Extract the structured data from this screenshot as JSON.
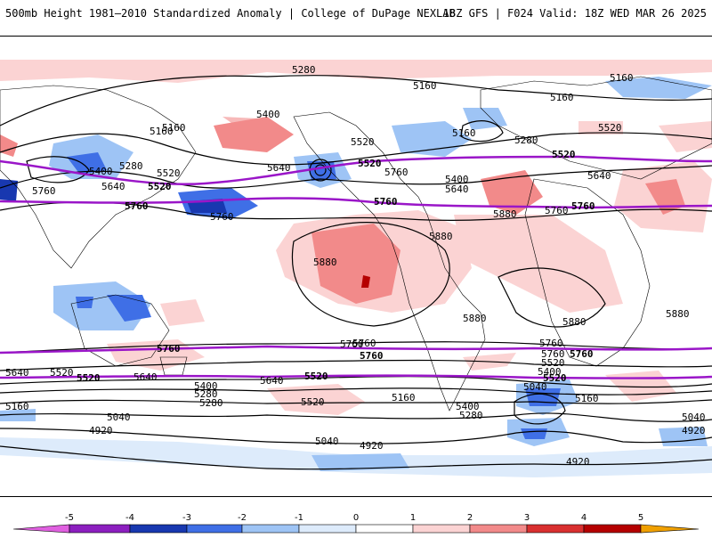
{
  "header": {
    "title_left": "500mb Height 1981–2010 Standardized Anomaly | College of DuPage NEXLAB",
    "title_right": "18Z GFS | F024 Valid: 18Z WED MAR 26 2025"
  },
  "colorbar": {
    "ticks": [
      "-5",
      "-4",
      "-3",
      "-2",
      "-1",
      "0",
      "1",
      "2",
      "3",
      "4",
      "5"
    ],
    "colors": [
      "#e060e0",
      "#8c1fbf",
      "#1838b0",
      "#3f6fe6",
      "#9ec4f5",
      "#ddebfb",
      "#ffffff",
      "#ffffff",
      "#fbd3d3",
      "#f28a8a",
      "#d93030",
      "#b50000",
      "#f0a000",
      "#ffd060"
    ]
  },
  "map": {
    "contour_labels": {
      "black": [
        "5280",
        "5160",
        "5160",
        "5400",
        "5160",
        "5160",
        "5160",
        "5520",
        "5280",
        "5400",
        "5280",
        "5520",
        "5640",
        "5640",
        "5760",
        "5400",
        "5640",
        "5760",
        "5520",
        "5160",
        "5640",
        "5760",
        "5880",
        "5880",
        "5880",
        "5880",
        "5880",
        "5880",
        "5760",
        "5760",
        "5760",
        "5640",
        "5520",
        "5400",
        "5280",
        "5160",
        "5520",
        "5640",
        "5760",
        "5640",
        "5520",
        "5400",
        "5280",
        "5160",
        "5040",
        "4920",
        "5040",
        "4920",
        "4920",
        "5040",
        "5160",
        "5280",
        "5400",
        "5520",
        "4920",
        "5040",
        "5160",
        "5760",
        "5640",
        "5520",
        "5160",
        "5040",
        "4920"
      ],
      "purple": [
        "5520",
        "5520",
        "5520",
        "5760",
        "5760",
        "5760",
        "5760",
        "5760",
        "5760",
        "5520",
        "5520",
        "5520"
      ]
    }
  }
}
